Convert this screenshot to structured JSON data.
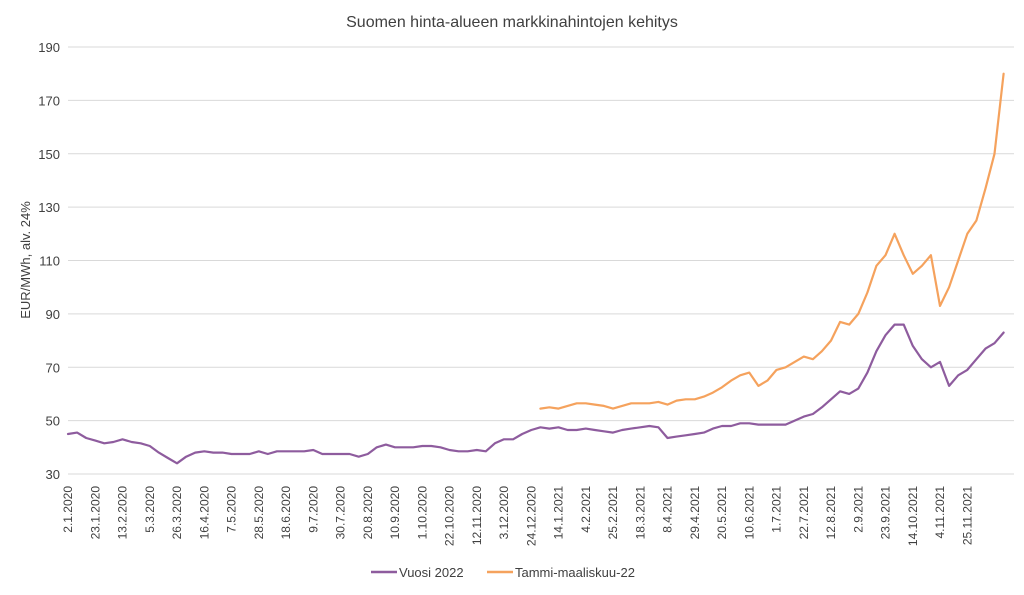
{
  "chart_data": {
    "type": "line",
    "title": "Suomen hinta-alueen markkinahintojen kehitys",
    "xlabel": "",
    "ylabel": "EUR/MWh, alv. 24%",
    "ylim": [
      30,
      190
    ],
    "yticks": [
      30,
      50,
      70,
      90,
      110,
      130,
      150,
      170,
      190
    ],
    "grid": true,
    "legend_position": "bottom",
    "x_tick_labels": [
      "2.1.2020",
      "23.1.2020",
      "13.2.2020",
      "5.3.2020",
      "26.3.2020",
      "16.4.2020",
      "7.5.2020",
      "28.5.2020",
      "18.6.2020",
      "9.7.2020",
      "30.7.2020",
      "20.8.2020",
      "10.9.2020",
      "1.10.2020",
      "22.10.2020",
      "12.11.2020",
      "3.12.2020",
      "24.12.2020",
      "14.1.2021",
      "4.2.2021",
      "25.2.2021",
      "18.3.2021",
      "8.4.2021",
      "29.4.2021",
      "20.5.2021",
      "10.6.2021",
      "1.7.2021",
      "22.7.2021",
      "12.8.2021",
      "2.9.2021",
      "23.9.2021",
      "14.10.2021",
      "4.11.2021",
      "25.11.2021"
    ],
    "series": [
      {
        "name": "Vuosi 2022",
        "color": "#8e5c9e",
        "x": [
          "2.1.2020",
          "9.1.2020",
          "16.1.2020",
          "23.1.2020",
          "30.1.2020",
          "6.2.2020",
          "13.2.2020",
          "20.2.2020",
          "27.2.2020",
          "5.3.2020",
          "12.3.2020",
          "19.3.2020",
          "26.3.2020",
          "2.4.2020",
          "9.4.2020",
          "16.4.2020",
          "23.4.2020",
          "30.4.2020",
          "7.5.2020",
          "14.5.2020",
          "21.5.2020",
          "28.5.2020",
          "4.6.2020",
          "11.6.2020",
          "18.6.2020",
          "25.6.2020",
          "2.7.2020",
          "9.7.2020",
          "16.7.2020",
          "23.7.2020",
          "30.7.2020",
          "6.8.2020",
          "13.8.2020",
          "20.8.2020",
          "27.8.2020",
          "3.9.2020",
          "10.9.2020",
          "17.9.2020",
          "24.9.2020",
          "1.10.2020",
          "8.10.2020",
          "15.10.2020",
          "22.10.2020",
          "29.10.2020",
          "5.11.2020",
          "12.11.2020",
          "19.11.2020",
          "26.11.2020",
          "3.12.2020",
          "10.12.2020",
          "17.12.2020",
          "24.12.2020",
          "31.12.2020",
          "7.1.2021",
          "14.1.2021",
          "21.1.2021",
          "28.1.2021",
          "4.2.2021",
          "11.2.2021",
          "18.2.2021",
          "25.2.2021",
          "4.3.2021",
          "11.3.2021",
          "18.3.2021",
          "25.3.2021",
          "1.4.2021",
          "8.4.2021",
          "15.4.2021",
          "22.4.2021",
          "29.4.2021",
          "6.5.2021",
          "13.5.2021",
          "20.5.2021",
          "27.5.2021",
          "3.6.2021",
          "10.6.2021",
          "17.6.2021",
          "24.6.2021",
          "1.7.2021",
          "8.7.2021",
          "15.7.2021",
          "22.7.2021",
          "29.7.2021",
          "5.8.2021",
          "12.8.2021",
          "19.8.2021",
          "26.8.2021",
          "2.9.2021",
          "9.9.2021",
          "16.9.2021",
          "23.9.2021",
          "30.9.2021",
          "7.10.2021",
          "14.10.2021",
          "21.10.2021",
          "28.10.2021",
          "4.11.2021",
          "11.11.2021",
          "18.11.2021",
          "25.11.2021",
          "2.12.2021",
          "9.12.2021",
          "16.12.2021",
          "23.12.2021"
        ],
        "values": [
          45,
          45.5,
          43.5,
          42.5,
          41.5,
          42,
          43,
          42,
          41.5,
          40.5,
          38,
          36,
          34,
          36.5,
          38,
          38.5,
          38,
          38,
          37.5,
          37.5,
          37.5,
          38.5,
          37.5,
          38.5,
          38.5,
          38.5,
          38.5,
          39,
          37.5,
          37.5,
          37.5,
          37.5,
          36.5,
          37.5,
          40,
          41,
          40,
          40,
          40,
          40.5,
          40.5,
          40,
          39,
          38.5,
          38.5,
          39,
          38.5,
          41.5,
          43,
          43,
          45,
          46.5,
          47.5,
          47,
          47.5,
          46.5,
          46.5,
          47,
          46.5,
          46,
          45.5,
          46.5,
          47,
          47.5,
          48,
          47.5,
          43.5,
          44,
          44.5,
          45,
          45.5,
          47,
          48,
          48,
          49,
          49,
          48.5,
          48.5,
          48.5,
          48.5,
          50,
          51.5,
          52.5,
          55,
          58,
          61,
          60,
          62,
          68,
          76,
          82,
          86,
          86,
          78,
          73,
          70,
          72,
          63,
          67,
          69,
          73,
          77,
          79,
          83
        ]
      },
      {
        "name": "Tammi-maaliskuu-22",
        "color": "#f5a25d",
        "x": [
          "31.12.2020",
          "7.1.2021",
          "14.1.2021",
          "21.1.2021",
          "28.1.2021",
          "4.2.2021",
          "11.2.2021",
          "18.2.2021",
          "25.2.2021",
          "4.3.2021",
          "11.3.2021",
          "18.3.2021",
          "25.3.2021",
          "1.4.2021",
          "8.4.2021",
          "15.4.2021",
          "22.4.2021",
          "29.4.2021",
          "6.5.2021",
          "13.5.2021",
          "20.5.2021",
          "27.5.2021",
          "3.6.2021",
          "10.6.2021",
          "17.6.2021",
          "24.6.2021",
          "1.7.2021",
          "8.7.2021",
          "15.7.2021",
          "22.7.2021",
          "29.7.2021",
          "5.8.2021",
          "12.8.2021",
          "19.8.2021",
          "26.8.2021",
          "2.9.2021",
          "9.9.2021",
          "16.9.2021",
          "23.9.2021",
          "30.9.2021",
          "7.10.2021",
          "14.10.2021",
          "21.10.2021",
          "28.10.2021",
          "4.11.2021",
          "11.11.2021",
          "18.11.2021",
          "25.11.2021",
          "2.12.2021",
          "9.12.2021",
          "16.12.2021",
          "23.12.2021"
        ],
        "values": [
          54.5,
          55,
          54.5,
          55.5,
          56.5,
          56.5,
          56,
          55.5,
          54.5,
          55.5,
          56.5,
          56.5,
          56.5,
          57,
          56,
          57.5,
          58,
          58,
          59,
          60.5,
          62.5,
          65,
          67,
          68,
          63,
          65,
          69,
          70,
          72,
          74,
          73,
          76,
          80,
          87,
          86,
          90,
          98,
          108,
          112,
          120,
          112,
          105,
          108,
          112,
          93,
          100,
          110,
          120,
          125,
          137,
          150,
          180
        ]
      }
    ]
  }
}
